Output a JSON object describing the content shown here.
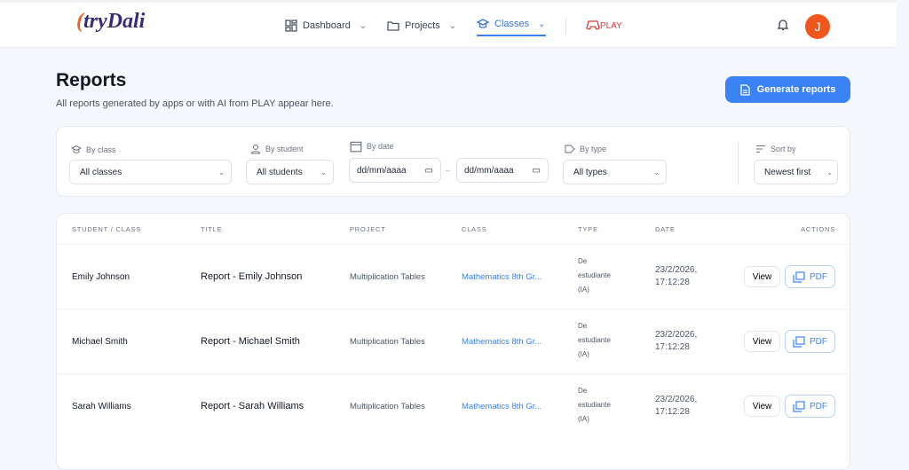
{
  "nav": {
    "logo": "tryDali",
    "items": [
      {
        "label": "Dashboard",
        "icon": "dashboard-icon"
      },
      {
        "label": "Projects",
        "icon": "folder-icon"
      },
      {
        "label": "Classes",
        "icon": "graduation-cap-icon",
        "active": true
      }
    ],
    "play": "PLAY",
    "avatar": "J"
  },
  "header": {
    "title": "Reports",
    "subtitle": "All reports generated by apps or with AI from PLAY appear here.",
    "generate": "Generate reports"
  },
  "filters": {
    "by_class": "By class",
    "class_value": "All classes",
    "by_student": "By student",
    "student_value": "All students",
    "by_date": "By date",
    "date_from": "dd/mm/aaaa",
    "date_to": "dd/mm/aaaa",
    "date_sep": "–",
    "by_type": "By type",
    "type_value": "All types",
    "sort_by": "Sort by",
    "sort_value": "Newest first"
  },
  "table": {
    "headers": [
      "STUDENT / CLASS",
      "TITLE",
      "PROJECT",
      "CLASS",
      "TYPE",
      "DATE",
      "ACTIONS"
    ],
    "rows": [
      {
        "student": "Emily Johnson",
        "title": "Report - Emily Johnson",
        "project": "Multiplication Tables",
        "class": "Mathematics 8th Gr...",
        "type": [
          "De",
          "estudiante",
          "(IA)"
        ],
        "date": [
          "23/2/2026,",
          "17:12:28"
        ]
      },
      {
        "student": "Michael Smith",
        "title": "Report - Michael Smith",
        "project": "Multiplication Tables",
        "class": "Mathematics 8th Gr...",
        "type": [
          "De",
          "estudiante",
          "(IA)"
        ],
        "date": [
          "23/2/2026,",
          "17:12:28"
        ]
      },
      {
        "student": "Sarah Williams",
        "title": "Report - Sarah Williams",
        "project": "Multiplication Tables",
        "class": "Mathematics 8th Gr...",
        "type": [
          "De",
          "estudiante",
          "(IA)"
        ],
        "date": [
          "23/2/2026,",
          "17:12:28"
        ]
      }
    ],
    "view": "View",
    "pdf": "PDF"
  },
  "colors": {
    "accent": "#3b82f6",
    "avatar": "#f0561c",
    "play": "#e53935"
  }
}
